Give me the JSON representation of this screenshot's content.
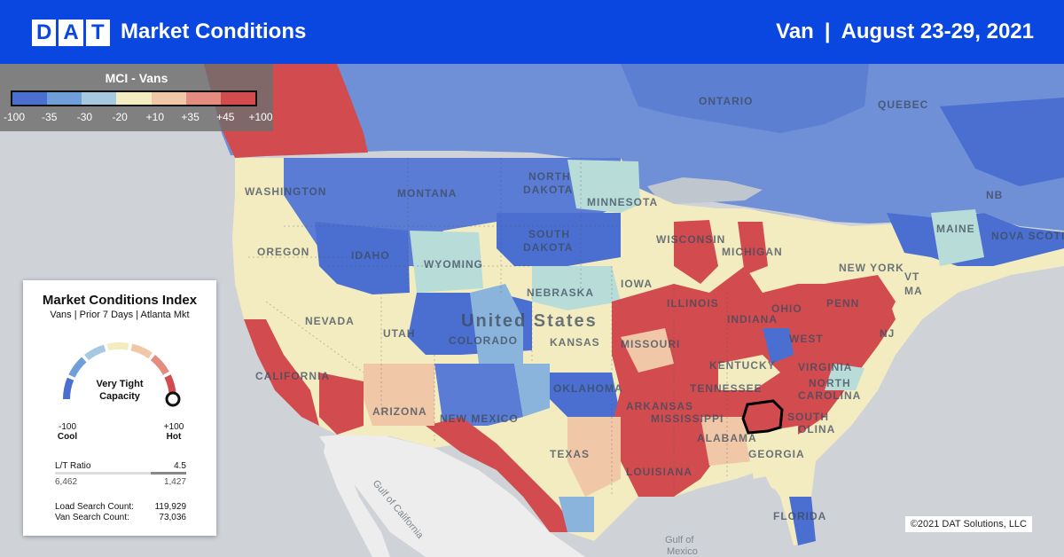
{
  "header": {
    "logo_letters": [
      "D",
      "A",
      "T"
    ],
    "title": "Market Conditions",
    "equipment": "Van",
    "separator": "|",
    "date_range": "August 23-29, 2021"
  },
  "legend": {
    "title": "MCI - Vans",
    "colors": [
      "#4a6fd1",
      "#6f9ed8",
      "#a7c9e0",
      "#f3ecc0",
      "#f0c8a8",
      "#e58c80",
      "#d24c4f"
    ],
    "ticks": [
      "-100",
      "-35",
      "-30",
      "-20",
      "+10",
      "+35",
      "+45",
      "+100"
    ]
  },
  "card": {
    "title": "Market Conditions Index",
    "subtitle": "Vans | Prior 7 Days | Atlanta Mkt",
    "gauge_value": 100,
    "gauge_min": "-100",
    "gauge_min_label": "Cool",
    "gauge_max": "+100",
    "gauge_max_label": "Hot",
    "capacity_line1": "Very Tight",
    "capacity_line2": "Capacity",
    "lt_ratio_label": "L/T Ratio",
    "lt_ratio_value": "4.5",
    "loads": "6,462",
    "trucks": "1,427",
    "load_search_label": "Load Search Count:",
    "load_search_value": "119,929",
    "van_search_label": "Van Search Count:",
    "van_search_value": "73,036"
  },
  "map_labels": {
    "ontario": "ONTARIO",
    "quebec": "QUEBEC",
    "washington": "WASHINGTON",
    "montana": "MONTANA",
    "north_dakota_1": "NORTH",
    "north_dakota_2": "DAKOTA",
    "minnesota": "MINNESOTA",
    "maine": "MAINE",
    "nb": "NB",
    "nova_scotia": "NOVA SCOTIA",
    "oregon": "OREGON",
    "idaho": "IDAHO",
    "south_dakota_1": "SOUTH",
    "south_dakota_2": "DAKOTA",
    "wisconsin": "WISCONSIN",
    "michigan": "MICHIGAN",
    "new_york": "NEW YORK",
    "wyoming": "WYOMING",
    "nebraska": "NEBRASKA",
    "iowa": "IOWA",
    "vermont": "VT",
    "ma": "MA",
    "nevada": "NEVADA",
    "utah": "UTAH",
    "united_states": "United States",
    "colorado": "COLORADO",
    "kansas": "KANSAS",
    "illinois": "ILLINOIS",
    "indiana": "INDIANA",
    "ohio": "OHIO",
    "penn": "PENN",
    "nj": "NJ",
    "missouri": "MISSOURI",
    "west_virginia": "WEST",
    "kentucky": "KENTUCKY",
    "virginia": "VIRGINIA",
    "california": "CALIFORNIA",
    "oklahoma": "OKLAHOMA",
    "tennessee": "TENNESSEE",
    "north_carolina": "NORTH",
    "carolina": "CAROLINA",
    "arizona": "ARIZONA",
    "new_mexico": "NEW MEXICO",
    "arkansas": "ARKANSAS",
    "mississippi": "MISSISSIPPI",
    "south": "SOUTH",
    "alabama": "ALABAMA",
    "georgia": "GEORGIA",
    "texas": "TEXAS",
    "louisiana": "LOUISIANA",
    "south_carolina_2": "OLINA",
    "florida": "FLORIDA",
    "gulf_california": "Gulf of California",
    "gulf_mexico_1": "Gulf of",
    "gulf_mexico_2": "Mexico"
  },
  "highlighted_market": "Atlanta",
  "copyright": "©2021 DAT Solutions, LLC"
}
